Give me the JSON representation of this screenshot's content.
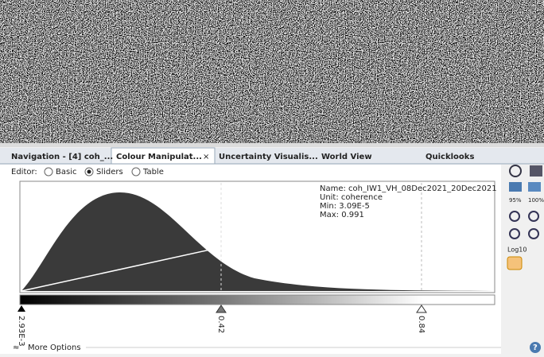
{
  "tabs": [
    "Navigation - [4] coh_...",
    "Colour Manipulat...",
    "Uncertainty Visualis...",
    "World View",
    "Quicklooks"
  ],
  "editor": {
    "label": "Editor:",
    "options": [
      "Basic",
      "Sliders",
      "Table"
    ]
  },
  "info": {
    "name": "Name: coh_IW1_VH_08Dec2021_20Dec2021",
    "unit": "Unit: coherence",
    "min": "Min: 3.09E-5",
    "max": "Max: 0.991"
  },
  "sliders": [
    "2.93E-3",
    "0.42",
    "0.84"
  ],
  "more_options": "More Options",
  "toolbar": {
    "p95": "95%",
    "p100": "100%",
    "log": "Log10"
  }
}
